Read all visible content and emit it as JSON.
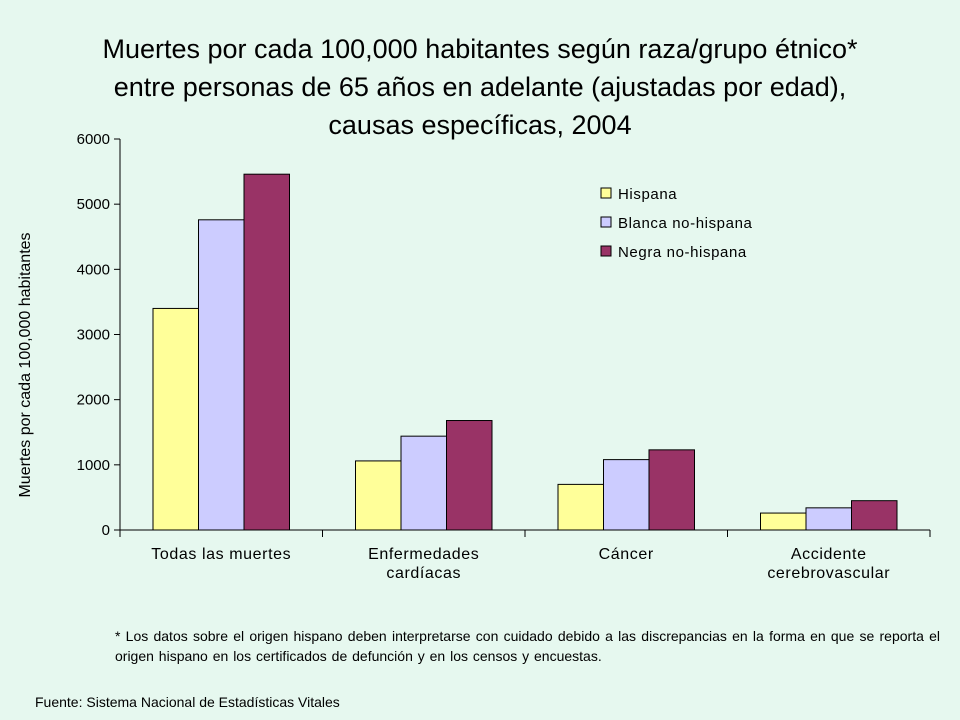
{
  "title": "Muertes por cada 100,000 habitantes según raza/grupo étnico*\nentre personas de 65 años en adelante (ajustadas por edad),\ncausas específicas, 2004",
  "footnote": "* Los datos sobre el origen hispano deben interpretarse con cuidado debido a las discrepancias en la forma en que se reporta el origen hispano en los certificados de defunción y en los censos y encuestas.",
  "source": "Fuente: Sistema Nacional de Estadísticas Vitales",
  "chart_data": {
    "type": "bar",
    "title": "Muertes por cada 100,000 habitantes según raza/grupo étnico* entre personas de 65 años en adelante (ajustadas por edad), causas específicas, 2004",
    "xlabel": "",
    "ylabel": "Muertes por cada 100,000 habitantes",
    "ylim": [
      0,
      6000
    ],
    "yticks": [
      0,
      1000,
      2000,
      3000,
      4000,
      5000,
      6000
    ],
    "grid": false,
    "legend_position": "top-right",
    "categories": [
      [
        "Todas las muertes"
      ],
      [
        "Enfermedades",
        "cardíacas"
      ],
      [
        "Cáncer"
      ],
      [
        "Accidente",
        "cerebrovascular"
      ]
    ],
    "series": [
      {
        "name": "Hispana",
        "color": "#ffff99",
        "values": [
          3400,
          1060,
          700,
          260
        ]
      },
      {
        "name": "Blanca no-hispana",
        "color": "#ccccff",
        "values": [
          4760,
          1440,
          1080,
          340
        ]
      },
      {
        "name": "Negra no-hispana",
        "color": "#993366",
        "values": [
          5460,
          1680,
          1230,
          450
        ]
      }
    ]
  }
}
